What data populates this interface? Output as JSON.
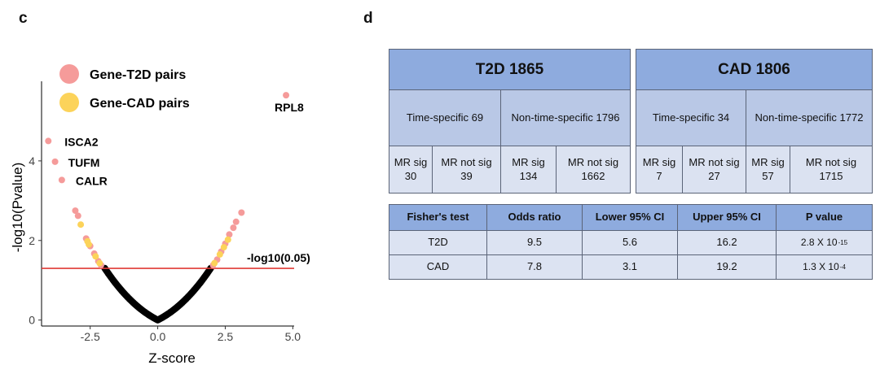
{
  "panels": {
    "left": "c",
    "right": "d"
  },
  "chart_data": {
    "type": "scatter",
    "xlabel": "Z-score",
    "ylabel": "-log10(Pvalue)",
    "xlim": [
      -4.3,
      5.05
    ],
    "ylim": [
      -0.15,
      6.0
    ],
    "xticks": [
      "-2.5",
      "0.0",
      "2.5",
      "5.0"
    ],
    "yticks": [
      "0",
      "2",
      "4"
    ],
    "threshold": {
      "y": 1.3,
      "label": "-log10(0.05)",
      "color": "#e03a35"
    },
    "legend": [
      {
        "name": "Gene-T2D pairs",
        "color": "#f59b9a"
      },
      {
        "name": "Gene-CAD pairs",
        "color": "#fcd35a"
      }
    ],
    "colors": {
      "t2d": "#f59b9a",
      "cad": "#fcd35a",
      "nonsig": "#000000"
    },
    "labeled_points": [
      {
        "label": "RPL8",
        "x": 4.75,
        "y": 5.65
      },
      {
        "label": "ISCA2",
        "x": -4.05,
        "y": 4.5
      },
      {
        "label": "TUFM",
        "x": -3.8,
        "y": 3.98
      },
      {
        "label": "CALR",
        "x": -3.55,
        "y": 3.52
      }
    ],
    "t2d_points": [
      [
        -3.05,
        2.75
      ],
      [
        -2.95,
        2.62
      ],
      [
        -2.65,
        2.05
      ],
      [
        -2.5,
        1.86
      ],
      [
        -2.35,
        1.67
      ],
      [
        -2.2,
        1.48
      ],
      [
        -2.1,
        1.38
      ],
      [
        2.05,
        1.38
      ],
      [
        2.2,
        1.52
      ],
      [
        2.35,
        1.72
      ],
      [
        2.5,
        1.92
      ],
      [
        2.65,
        2.15
      ],
      [
        2.8,
        2.32
      ],
      [
        2.9,
        2.47
      ],
      [
        3.1,
        2.7
      ]
    ],
    "cad_points": [
      [
        -2.85,
        2.4
      ],
      [
        -2.6,
        1.98
      ],
      [
        -2.55,
        1.9
      ],
      [
        -2.3,
        1.6
      ],
      [
        -2.15,
        1.43
      ],
      [
        2.1,
        1.43
      ],
      [
        2.3,
        1.65
      ],
      [
        2.45,
        1.83
      ],
      [
        2.6,
        2.02
      ]
    ]
  },
  "table_top": {
    "t2d": {
      "title": "T2D 1865",
      "groups": [
        {
          "label": "Time-specific 69",
          "sig": "MR sig\n30",
          "notsig": "MR not sig\n39"
        },
        {
          "label": "Non-time-specific 1796",
          "sig": "MR sig\n134",
          "notsig": "MR not sig\n1662"
        }
      ]
    },
    "cad": {
      "title": "CAD 1806",
      "groups": [
        {
          "label": "Time-specific 34",
          "sig": "MR sig\n7",
          "notsig": "MR not sig\n27"
        },
        {
          "label": "Non-time-specific 1772",
          "sig": "MR sig\n57",
          "notsig": "MR not sig\n1715"
        }
      ]
    }
  },
  "fisher": {
    "headers": [
      "Fisher's test",
      "Odds ratio",
      "Lower 95% CI",
      "Upper 95% CI",
      "P value"
    ],
    "rows": [
      {
        "test": "T2D",
        "odds": "9.5",
        "lower": "5.6",
        "upper": "16.2",
        "p_base": "2.8 X 10",
        "p_exp": "-15"
      },
      {
        "test": "CAD",
        "odds": "7.8",
        "lower": "3.1",
        "upper": "19.2",
        "p_base": "1.3 X 10",
        "p_exp": "-4"
      }
    ]
  }
}
